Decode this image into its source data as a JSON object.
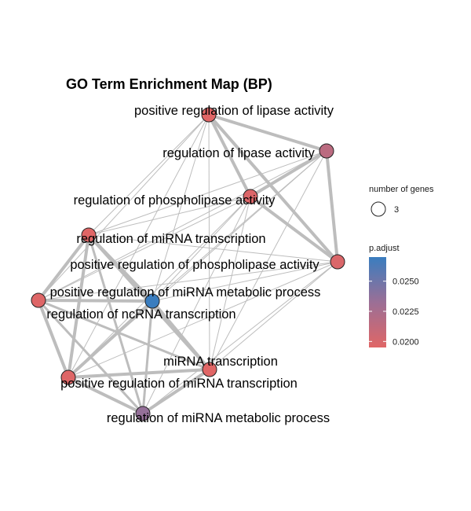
{
  "chart_data": {
    "type": "network",
    "title": "GO Term Enrichment Map (BP)",
    "nodes": [
      {
        "id": "pos_reg_lipase",
        "label": "positive regulation of lipase activity",
        "p_adjust": 0.0195,
        "gene_count": 3
      },
      {
        "id": "reg_lipase",
        "label": "regulation of lipase activity",
        "p_adjust": 0.0215,
        "gene_count": 3
      },
      {
        "id": "reg_phospholipase",
        "label": "regulation of phospholipase activity",
        "p_adjust": 0.0197,
        "gene_count": 3
      },
      {
        "id": "reg_mirna_transcription",
        "label": "regulation of miRNA transcription",
        "p_adjust": 0.0195,
        "gene_count": 3
      },
      {
        "id": "pos_reg_phospholipase",
        "label": "positive regulation of phospholipase activity",
        "p_adjust": 0.0198,
        "gene_count": 3
      },
      {
        "id": "pos_reg_mirna_metabolic",
        "label": "positive regulation of miRNA metabolic process",
        "p_adjust": 0.0196,
        "gene_count": 3
      },
      {
        "id": "reg_ncrna_transcription",
        "label": "regulation of ncRNA transcription",
        "p_adjust": 0.027,
        "gene_count": 3
      },
      {
        "id": "mirna_transcription",
        "label": "miRNA transcription",
        "p_adjust": 0.0195,
        "gene_count": 3
      },
      {
        "id": "pos_reg_mirna_transcription",
        "label": "positive regulation of miRNA transcription",
        "p_adjust": 0.0196,
        "gene_count": 3
      },
      {
        "id": "reg_mirna_metabolic",
        "label": "regulation of miRNA metabolic process",
        "p_adjust": 0.0235,
        "gene_count": 3
      }
    ],
    "edges": [
      [
        "pos_reg_lipase",
        "reg_lipase",
        4
      ],
      [
        "pos_reg_lipase",
        "reg_phospholipase",
        4
      ],
      [
        "pos_reg_lipase",
        "pos_reg_phospholipase",
        4
      ],
      [
        "reg_lipase",
        "reg_phospholipase",
        4
      ],
      [
        "reg_lipase",
        "pos_reg_phospholipase",
        4
      ],
      [
        "reg_phospholipase",
        "pos_reg_phospholipase",
        4
      ],
      [
        "reg_mirna_transcription",
        "pos_reg_mirna_metabolic",
        4
      ],
      [
        "reg_mirna_transcription",
        "reg_ncrna_transcription",
        4
      ],
      [
        "reg_mirna_transcription",
        "mirna_transcription",
        4
      ],
      [
        "reg_mirna_transcription",
        "pos_reg_mirna_transcription",
        4
      ],
      [
        "reg_mirna_transcription",
        "reg_mirna_metabolic",
        3
      ],
      [
        "pos_reg_mirna_metabolic",
        "reg_ncrna_transcription",
        4
      ],
      [
        "pos_reg_mirna_metabolic",
        "mirna_transcription",
        3
      ],
      [
        "pos_reg_mirna_metabolic",
        "pos_reg_mirna_transcription",
        4
      ],
      [
        "pos_reg_mirna_metabolic",
        "reg_mirna_metabolic",
        3
      ],
      [
        "reg_ncrna_transcription",
        "mirna_transcription",
        4
      ],
      [
        "reg_ncrna_transcription",
        "pos_reg_mirna_transcription",
        4
      ],
      [
        "reg_ncrna_transcription",
        "reg_mirna_metabolic",
        3
      ],
      [
        "mirna_transcription",
        "pos_reg_mirna_transcription",
        4
      ],
      [
        "mirna_transcription",
        "reg_mirna_metabolic",
        4
      ],
      [
        "pos_reg_mirna_transcription",
        "reg_mirna_metabolic",
        4
      ],
      [
        "reg_lipase",
        "reg_mirna_transcription",
        1
      ],
      [
        "reg_lipase",
        "pos_reg_mirna_metabolic",
        1
      ],
      [
        "reg_lipase",
        "reg_ncrna_transcription",
        1
      ],
      [
        "reg_lipase",
        "mirna_transcription",
        1
      ],
      [
        "reg_lipase",
        "pos_reg_mirna_transcription",
        1
      ],
      [
        "pos_reg_lipase",
        "reg_mirna_transcription",
        1
      ],
      [
        "pos_reg_lipase",
        "pos_reg_mirna_metabolic",
        1
      ],
      [
        "pos_reg_lipase",
        "reg_ncrna_transcription",
        1
      ],
      [
        "pos_reg_lipase",
        "mirna_transcription",
        1
      ],
      [
        "pos_reg_lipase",
        "pos_reg_mirna_transcription",
        1
      ],
      [
        "reg_phospholipase",
        "reg_mirna_transcription",
        1
      ],
      [
        "reg_phospholipase",
        "pos_reg_mirna_metabolic",
        1
      ],
      [
        "reg_phospholipase",
        "reg_ncrna_transcription",
        1
      ],
      [
        "reg_phospholipase",
        "mirna_transcription",
        1
      ],
      [
        "reg_phospholipase",
        "pos_reg_mirna_transcription",
        1
      ],
      [
        "reg_phospholipase",
        "reg_mirna_metabolic",
        1
      ],
      [
        "pos_reg_phospholipase",
        "reg_mirna_transcription",
        1
      ],
      [
        "pos_reg_phospholipase",
        "pos_reg_mirna_metabolic",
        1
      ],
      [
        "pos_reg_phospholipase",
        "reg_ncrna_transcription",
        1
      ],
      [
        "pos_reg_phospholipase",
        "mirna_transcription",
        1
      ],
      [
        "pos_reg_phospholipase",
        "pos_reg_mirna_transcription",
        1
      ],
      [
        "pos_reg_phospholipase",
        "reg_mirna_metabolic",
        1
      ]
    ],
    "legend": {
      "size_title": "number of genes",
      "size_value": "3",
      "color_title": "p.adjust",
      "color_ticks": [
        "0.0250",
        "0.0225",
        "0.0200"
      ],
      "color_tick_values": [
        0.025,
        0.0225,
        0.02
      ],
      "color_min": 0.0195,
      "color_max": 0.027,
      "color_low": "#e06666",
      "color_high": "#3a7dbf",
      "edge_color": "#bdbdbd",
      "node_stroke": "#222222"
    }
  }
}
